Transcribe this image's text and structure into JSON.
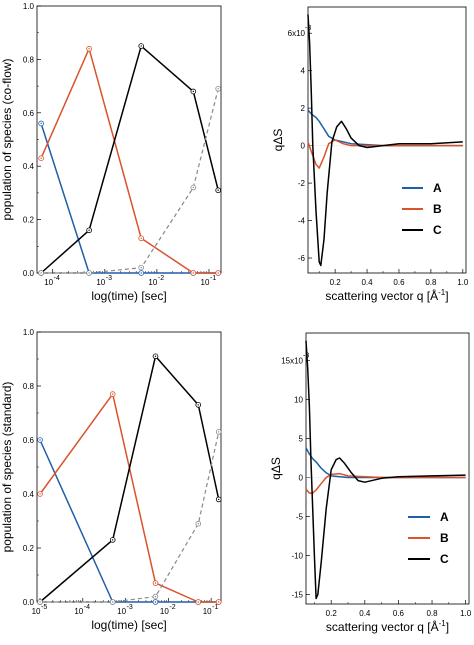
{
  "colors": {
    "A": "#1f5fa8",
    "B": "#d9532c",
    "C": "#000000",
    "D": "#888888"
  },
  "chart_data": [
    {
      "type": "line",
      "xscale": "log",
      "xlim": [
        5e-05,
        0.17
      ],
      "ylim": [
        0,
        1.0
      ],
      "xlabel": "log(time) [sec]",
      "ylabel": "population of  species (co-flow)",
      "yticks": [
        "0.0",
        "0.2",
        "0.4",
        "0.6",
        "0.8",
        "1.0"
      ],
      "xticks": [
        {
          "value": 0.0001,
          "base": "10",
          "exp": "-4"
        },
        {
          "value": 0.001,
          "base": "10",
          "exp": "-3"
        },
        {
          "value": 0.01,
          "base": "10",
          "exp": "-2"
        },
        {
          "value": 0.1,
          "base": "10",
          "exp": "-1"
        }
      ],
      "series": [
        {
          "key": "A",
          "x": [
            6e-05,
            0.0005,
            0.005,
            0.05,
            0.15
          ],
          "y": [
            0.56,
            0.0,
            0.0,
            0.0,
            0.0
          ]
        },
        {
          "key": "B",
          "x": [
            6e-05,
            0.0005,
            0.005,
            0.05,
            0.15
          ],
          "y": [
            0.43,
            0.84,
            0.13,
            0.0,
            0.0
          ]
        },
        {
          "key": "C",
          "x": [
            6e-05,
            0.0005,
            0.005,
            0.05,
            0.15
          ],
          "y": [
            0.0,
            0.16,
            0.85,
            0.68,
            0.31
          ]
        },
        {
          "key": "D",
          "dashed": true,
          "x": [
            6e-05,
            0.0005,
            0.005,
            0.05,
            0.15
          ],
          "y": [
            0.0,
            0.0,
            0.02,
            0.32,
            0.69
          ]
        }
      ]
    },
    {
      "type": "line",
      "xlim": [
        0.03,
        1.02
      ],
      "ylim": [
        -6.8,
        7.4
      ],
      "xlabel": "scattering vector q [Å",
      "xlabel_sup": "-1",
      "xlabel_end": "]",
      "ylabel": "qΔS",
      "yticks": [
        "-6",
        "-4",
        "-2",
        "0",
        "2",
        "4",
        "6x10"
      ],
      "ytick_values": [
        -6,
        -4,
        -2,
        0,
        2,
        4,
        6
      ],
      "exponent": "-3",
      "xticks": [
        "0.2",
        "0.4",
        "0.6",
        "0.8",
        "1.0"
      ],
      "xtick_values": [
        0.2,
        0.4,
        0.6,
        0.8,
        1.0
      ],
      "legend": [
        "A",
        "B",
        "C"
      ],
      "legend_position": "right",
      "series": [
        {
          "key": "A",
          "x": [
            0.03,
            0.05,
            0.08,
            0.1,
            0.13,
            0.16,
            0.2,
            0.3,
            0.5,
            1.0
          ],
          "y": [
            1.9,
            1.7,
            1.5,
            1.3,
            0.9,
            0.5,
            0.3,
            0.1,
            0.0,
            0.0
          ]
        },
        {
          "key": "B",
          "x": [
            0.03,
            0.05,
            0.08,
            0.1,
            0.13,
            0.16,
            0.2,
            0.25,
            0.3,
            0.5,
            1.0
          ],
          "y": [
            0.2,
            -0.3,
            -1.0,
            -1.2,
            -0.6,
            0.1,
            0.3,
            0.1,
            0.0,
            0.0,
            0.0
          ]
        },
        {
          "key": "C",
          "x": [
            0.03,
            0.04,
            0.05,
            0.06,
            0.08,
            0.1,
            0.11,
            0.13,
            0.15,
            0.18,
            0.21,
            0.24,
            0.27,
            0.3,
            0.35,
            0.4,
            0.5,
            0.6,
            0.8,
            1.0
          ],
          "y": [
            7.0,
            5.5,
            3.0,
            0.0,
            -3.5,
            -6.2,
            -6.4,
            -5.0,
            -2.5,
            0.2,
            1.0,
            1.3,
            0.9,
            0.4,
            0.0,
            -0.1,
            0.0,
            0.1,
            0.1,
            0.2
          ]
        }
      ]
    },
    {
      "type": "line",
      "xscale": "log",
      "xlim": [
        8.5e-06,
        0.17
      ],
      "ylim": [
        0,
        1.0
      ],
      "xlabel": "log(time) [sec]",
      "ylabel": "population of species (standard)",
      "yticks": [
        "0.0",
        "0.2",
        "0.4",
        "0.6",
        "0.8",
        "1.0"
      ],
      "xticks": [
        {
          "value": 1e-05,
          "base": "10",
          "exp": "-5"
        },
        {
          "value": 0.0001,
          "base": "10",
          "exp": "-4"
        },
        {
          "value": 0.001,
          "base": "10",
          "exp": "-3"
        },
        {
          "value": 0.01,
          "base": "10",
          "exp": "-2"
        },
        {
          "value": 0.1,
          "base": "10",
          "exp": "-1"
        }
      ],
      "series": [
        {
          "key": "A",
          "x": [
            1e-05,
            0.0005,
            0.005,
            0.05,
            0.15
          ],
          "y": [
            0.6,
            0.0,
            0.0,
            0.0,
            0.0
          ]
        },
        {
          "key": "B",
          "x": [
            1e-05,
            0.0005,
            0.005,
            0.05,
            0.15
          ],
          "y": [
            0.4,
            0.77,
            0.07,
            0.0,
            0.0
          ]
        },
        {
          "key": "C",
          "x": [
            1e-05,
            0.0005,
            0.005,
            0.05,
            0.15
          ],
          "y": [
            0.0,
            0.23,
            0.91,
            0.73,
            0.38
          ]
        },
        {
          "key": "D",
          "dashed": true,
          "x": [
            1e-05,
            0.0005,
            0.005,
            0.05,
            0.15
          ],
          "y": [
            0.0,
            0.0,
            0.02,
            0.29,
            0.63
          ]
        }
      ]
    },
    {
      "type": "line",
      "xlim": [
        0.05,
        1.02
      ],
      "ylim": [
        -16.2,
        18.5
      ],
      "xlabel": "scattering vector q [Å",
      "xlabel_sup": "-1",
      "xlabel_end": "]",
      "ylabel": "qΔS",
      "yticks": [
        "-15",
        "-10",
        "-5",
        "0",
        "5",
        "10",
        "15x10"
      ],
      "ytick_values": [
        -15,
        -10,
        -5,
        0,
        5,
        10,
        15
      ],
      "exponent": "-3",
      "xticks": [
        "0.2",
        "0.4",
        "0.6",
        "0.8",
        "1.0"
      ],
      "xtick_values": [
        0.2,
        0.4,
        0.6,
        0.8,
        1.0
      ],
      "legend": [
        "A",
        "B",
        "C"
      ],
      "legend_position": "bottom-right",
      "series": [
        {
          "key": "A",
          "x": [
            0.05,
            0.07,
            0.09,
            0.11,
            0.14,
            0.17,
            0.2,
            0.3,
            0.5,
            1.0
          ],
          "y": [
            3.8,
            3.0,
            2.4,
            2.0,
            1.2,
            0.6,
            0.2,
            0.0,
            0.0,
            0.0
          ]
        },
        {
          "key": "B",
          "x": [
            0.05,
            0.07,
            0.09,
            0.11,
            0.14,
            0.17,
            0.2,
            0.25,
            0.3,
            0.5,
            1.0
          ],
          "y": [
            -1.5,
            -2.0,
            -2.0,
            -1.6,
            -0.8,
            0.0,
            0.4,
            0.5,
            0.2,
            0.0,
            0.0
          ]
        },
        {
          "key": "C",
          "x": [
            0.05,
            0.06,
            0.07,
            0.08,
            0.1,
            0.11,
            0.12,
            0.14,
            0.17,
            0.2,
            0.23,
            0.25,
            0.28,
            0.32,
            0.36,
            0.4,
            0.5,
            0.6,
            0.8,
            1.0
          ],
          "y": [
            17.5,
            14.0,
            9.0,
            2.0,
            -10.0,
            -15.5,
            -15.0,
            -11.0,
            -4.0,
            1.0,
            2.3,
            2.5,
            1.8,
            0.6,
            -0.4,
            -0.6,
            -0.1,
            0.1,
            0.2,
            0.3
          ]
        }
      ]
    }
  ]
}
